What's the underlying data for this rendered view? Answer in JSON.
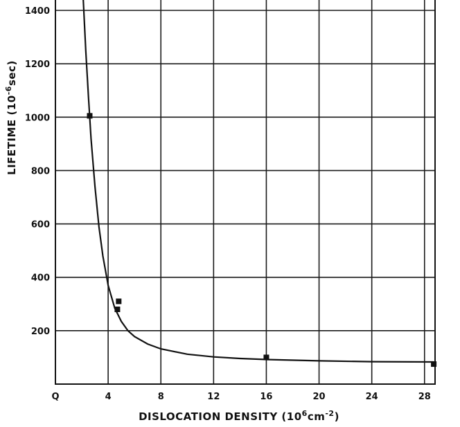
{
  "chart_data": {
    "type": "scatter",
    "title": "",
    "xlabel": {
      "prefix": "DISLOCATION DENSITY (10",
      "sup1": "6",
      "mid": "cm",
      "sup2": "-2",
      "suffix": ")"
    },
    "ylabel": {
      "prefix": "LIFETIME (10",
      "sup": "-6",
      "suffix": "sec)"
    },
    "xlim": [
      0,
      28.8
    ],
    "ylim": [
      0,
      1450
    ],
    "x_ticks": [
      0,
      4,
      8,
      12,
      16,
      20,
      24,
      28
    ],
    "x_tick_labels": [
      "Q",
      "4",
      "8",
      "12",
      "16",
      "20",
      "24",
      "28"
    ],
    "y_ticks": [
      200,
      400,
      600,
      800,
      1000,
      1200,
      1400
    ],
    "y_tick_labels": [
      "200",
      "400",
      "600",
      "800",
      "1000",
      "1200",
      "1400"
    ],
    "grid": true,
    "series": [
      {
        "points": [
          {
            "x": 2.6,
            "y": 1005
          },
          {
            "x": 4.7,
            "y": 280
          },
          {
            "x": 4.8,
            "y": 310
          },
          {
            "x": 16.0,
            "y": 100
          },
          {
            "x": 28.7,
            "y": 75
          }
        ]
      }
    ],
    "fit_curve": {
      "x": [
        2.1,
        2.3,
        2.5,
        2.7,
        3.0,
        3.3,
        3.6,
        4.0,
        4.5,
        5.0,
        5.5,
        6.0,
        7.0,
        8.0,
        10.0,
        12.0,
        14.0,
        16.0,
        20.0,
        24.0,
        28.7
      ],
      "y": [
        1450,
        1250,
        1080,
        920,
        740,
        590,
        480,
        370,
        285,
        235,
        200,
        178,
        150,
        132,
        112,
        102,
        96,
        92,
        87,
        84,
        83
      ]
    }
  }
}
